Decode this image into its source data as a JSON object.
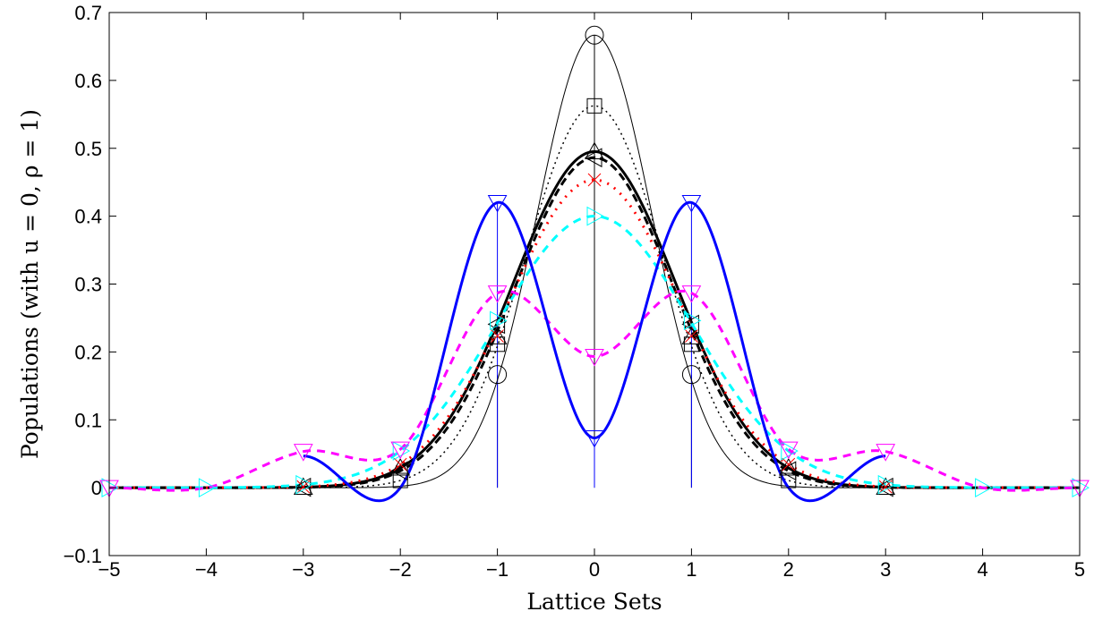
{
  "chart_data": {
    "type": "line",
    "title": "",
    "xlabel": "Lattice Sets",
    "ylabel": "Populations (with u = 0, ρ = 1)",
    "xlim": [
      -5,
      5
    ],
    "ylim": [
      -0.1,
      0.7
    ],
    "xticks": [
      -5,
      -4,
      -3,
      -2,
      -1,
      0,
      1,
      2,
      3,
      4,
      5
    ],
    "yticks": [
      -0.1,
      0,
      0.1,
      0.2,
      0.3,
      0.4,
      0.5,
      0.6,
      0.7
    ],
    "xtick_labels": [
      "−5",
      "−4",
      "−3",
      "−2",
      "−1",
      "0",
      "1",
      "2",
      "3",
      "4",
      "5"
    ],
    "ytick_labels": [
      "−0.1",
      "0",
      "0.1",
      "0.2",
      "0.3",
      "0.4",
      "0.5",
      "0.6",
      "0.7"
    ],
    "grid": false,
    "legend": "none",
    "curves": [
      {
        "color": "#000000",
        "dash": "",
        "width": 1,
        "marker": "circle",
        "scale": 0.59,
        "mean": 0.6667,
        "side": 0.1667,
        "lattice": [
          -1,
          0,
          1
        ],
        "zero_marks": []
      },
      {
        "color": "#000000",
        "dash": "2,4",
        "width": 1.5,
        "marker": "square",
        "scale": 0.71,
        "mean": 0.5625,
        "side": 0.2113,
        "lattice": [
          -2,
          -1,
          0,
          1,
          2
        ],
        "zero_marks": []
      },
      {
        "color": "#000000",
        "dash": "",
        "width": 3,
        "marker": "triangle-up",
        "scale": 0.84,
        "mean": 0.4951,
        "side": 0.2224,
        "lattice": [
          -3,
          -2,
          -1,
          0,
          1,
          2,
          3
        ],
        "zero_marks": []
      },
      {
        "color": "#000000",
        "dash": "9,5",
        "width": 3,
        "marker": "triangle-left",
        "scale": 0.82,
        "mean": 0.4862,
        "side": 0.2408,
        "lattice": [
          -3,
          -2,
          -1,
          0,
          1,
          2,
          3
        ],
        "zero_marks": []
      },
      {
        "color": "#ff0000",
        "dash": "2,7",
        "width": 3,
        "marker": "x",
        "scale": 0.88,
        "mean": 0.4535,
        "side": 0.2235,
        "lattice": [
          -3,
          -2,
          -1,
          0,
          1,
          2,
          3
        ],
        "zero_marks": []
      },
      {
        "color": "#00ffff",
        "dash": "9,7",
        "width": 3,
        "marker": "triangle-right",
        "scale": 1.0,
        "mean": 0.4,
        "side": 0.2462,
        "lattice": [
          -3,
          -2,
          -1,
          0,
          1,
          2,
          3
        ],
        "zero_marks": [
          -5,
          -4,
          4,
          5
        ]
      },
      {
        "color": "#ff00ff",
        "dash": "9,7",
        "width": 3,
        "marker": "triangle-down",
        "values": {
          "-5": 0.0,
          "-4": 0.0,
          "-3": 0.0533,
          "-2": 0.0567,
          "-1": 0.2867,
          "0": 0.1933,
          "1": 0.2867,
          "2": 0.0567,
          "3": 0.0533,
          "4": 0.0,
          "5": 0.0
        },
        "lattice": [
          -5,
          -3,
          -2,
          -1,
          0,
          1,
          2,
          3,
          5
        ],
        "zero_marks": []
      },
      {
        "color": "#0000ff",
        "dash": "",
        "width": 3,
        "marker": "triangle-down",
        "values": {
          "-3": 0.0467,
          "-2": 0.0,
          "-1": 0.42,
          "0": 0.0733,
          "1": 0.42,
          "2": 0.0,
          "3": 0.0467
        },
        "extent": [
          -3,
          3
        ],
        "lattice": [
          -1,
          0,
          1
        ],
        "zero_marks": []
      }
    ],
    "stems": [
      {
        "color": "#000000",
        "x": [
          -1,
          0,
          1
        ],
        "values": [
          0.1667,
          0.6667,
          0.1667
        ]
      },
      {
        "color": "#0000ff",
        "x": [
          -1,
          0,
          1
        ],
        "values": [
          0.42,
          0.0733,
          0.42
        ]
      },
      {
        "color": "#cc0000",
        "x": [
          -2,
          -1,
          0,
          1,
          2
        ],
        "values": [
          0,
          0,
          0,
          0,
          0
        ]
      }
    ]
  }
}
